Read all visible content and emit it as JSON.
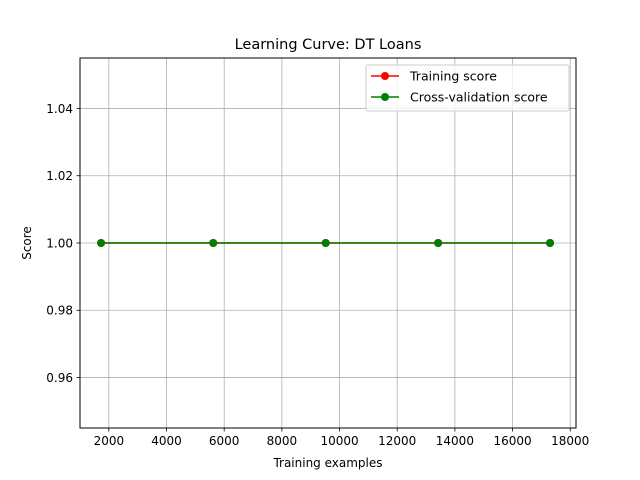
{
  "chart_data": {
    "type": "line",
    "title": "Learning Curve: DT Loans",
    "xlabel": "Training examples",
    "ylabel": "Score",
    "xlim": [
      1000,
      18200
    ],
    "ylim": [
      0.945,
      1.055
    ],
    "xticks": [
      2000,
      4000,
      6000,
      8000,
      10000,
      12000,
      14000,
      16000,
      18000
    ],
    "xtick_labels": [
      "2000",
      "4000",
      "6000",
      "8000",
      "10000",
      "12000",
      "14000",
      "16000",
      "18000"
    ],
    "yticks": [
      0.96,
      0.98,
      1.0,
      1.02,
      1.04
    ],
    "ytick_labels": [
      "0.96",
      "0.98",
      "1.00",
      "1.02",
      "1.04"
    ],
    "grid": true,
    "legend_position": "top-right",
    "x": [
      1730,
      5620,
      9520,
      13420,
      17300
    ],
    "series": [
      {
        "name": "Training score",
        "color": "#ff0000",
        "values": [
          1.0,
          1.0,
          1.0,
          1.0,
          1.0
        ]
      },
      {
        "name": "Cross-validation score",
        "color": "#008000",
        "values": [
          1.0,
          1.0,
          1.0,
          1.0,
          1.0
        ]
      }
    ]
  }
}
